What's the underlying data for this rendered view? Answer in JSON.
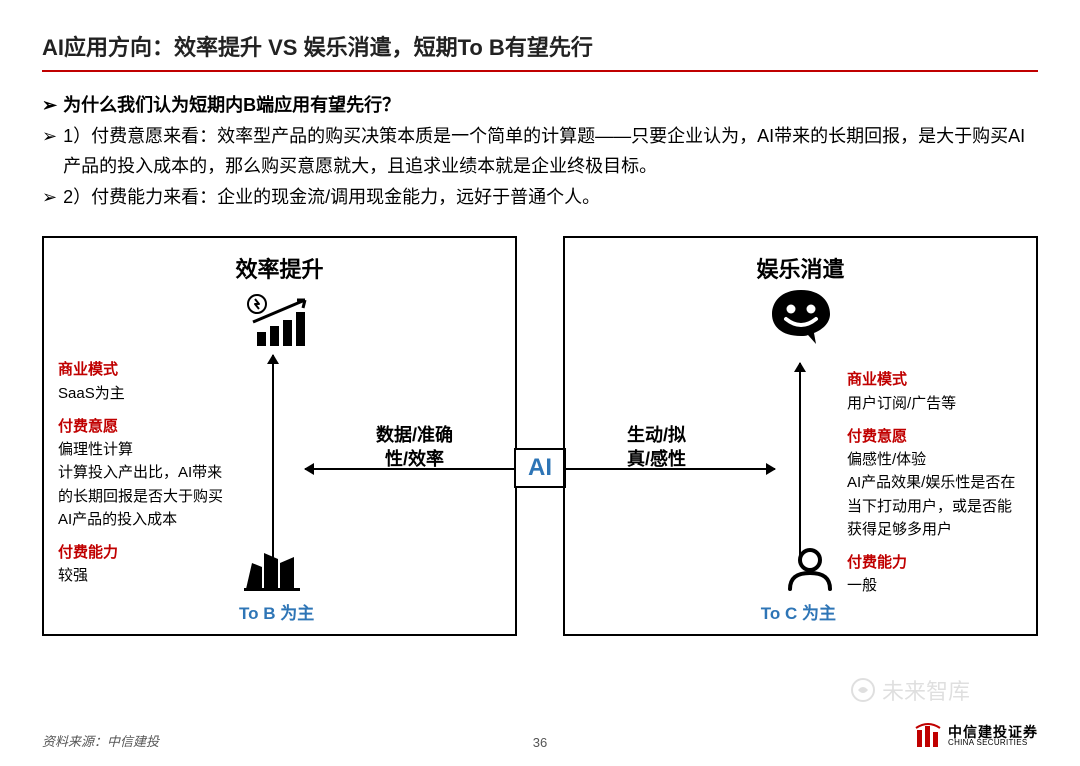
{
  "colors": {
    "accent": "#c00000",
    "link": "#2e75b6",
    "text": "#000",
    "border": "#000"
  },
  "slide": {
    "title": "AI应用方向：效率提升 VS 娱乐消遣，短期To B有望先行",
    "bullets": [
      {
        "mark": "➢",
        "text": "为什么我们认为短期内B端应用有望先行？",
        "bold": true
      },
      {
        "mark": "➢",
        "text": "1）付费意愿来看：效率型产品的购买决策本质是一个简单的计算题——只要企业认为，AI带来的长期回报，是大于购买AI产品的投入成本的，那么购买意愿就大，且追求业绩本就是企业终极目标。"
      },
      {
        "mark": "➢",
        "text": "2）付费能力来看：企业的现金流/调用现金能力，远好于普通个人。"
      }
    ],
    "center_label": "AI",
    "left": {
      "title": "效率提升",
      "arrow_label": "数据/准确性/效率",
      "bottom_label": "To B 为主",
      "attrs": [
        {
          "label": "商业模式",
          "body": "SaaS为主"
        },
        {
          "label": "付费意愿",
          "body": "偏理性计算\n计算投入产出比，AI带来的长期回报是否大于购买AI产品的投入成本"
        },
        {
          "label": "付费能力",
          "body": "较强"
        }
      ]
    },
    "right": {
      "title": "娱乐消遣",
      "arrow_label": "生动/拟真/感性",
      "bottom_label": "To C 为主",
      "attrs": [
        {
          "label": "商业模式",
          "body": "用户订阅/广告等"
        },
        {
          "label": "付费意愿",
          "body": "偏感性/体验\nAI产品效果/娱乐性是否在当下打动用户，或是否能获得足够多用户"
        },
        {
          "label": "付费能力",
          "body": "一般"
        }
      ]
    }
  },
  "footer": {
    "source": "资料来源：中信建投",
    "page": "36",
    "logo_cn": "中信建投证券",
    "logo_en": "CHINA SECURITIES"
  },
  "watermark": "未来智库"
}
